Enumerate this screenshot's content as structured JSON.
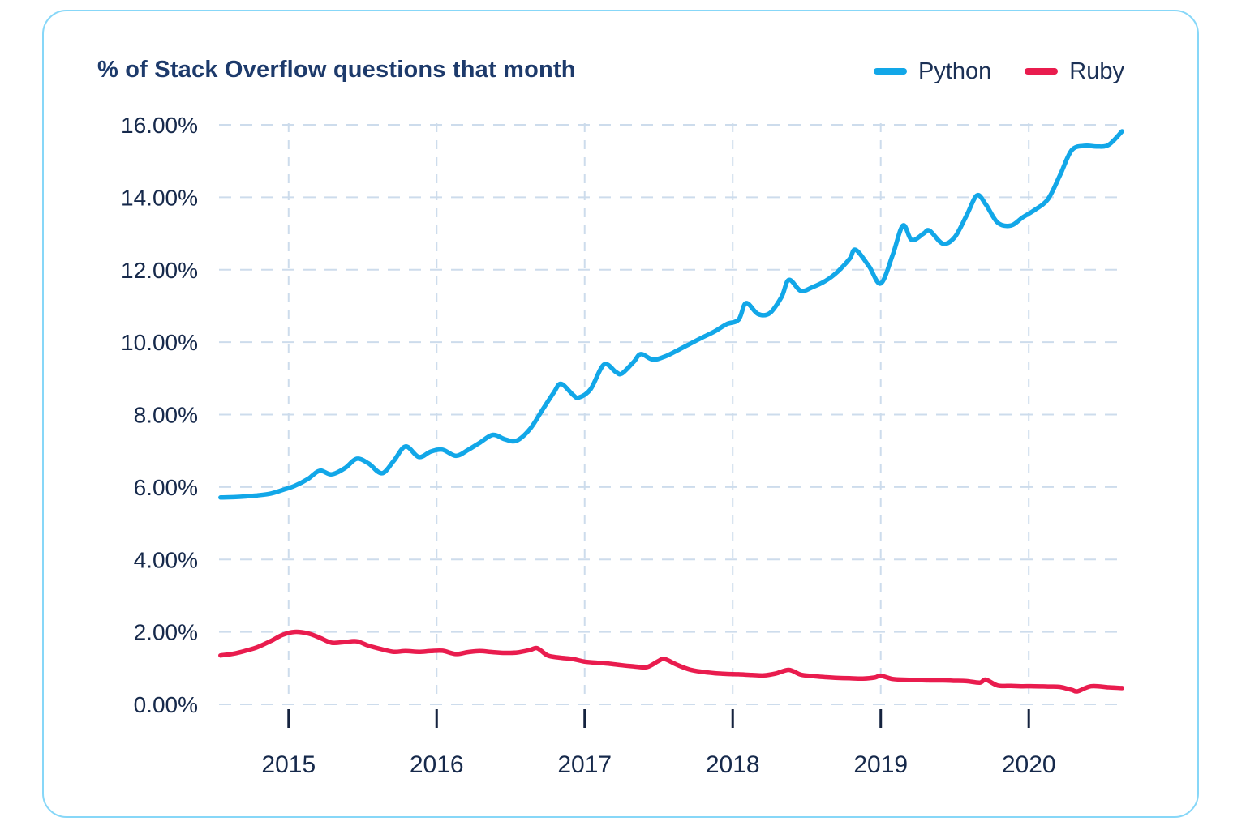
{
  "chart": {
    "title": "% of Stack Overflow questions that month"
  },
  "legend": [
    {
      "label": "Python",
      "color": "#12a7e8"
    },
    {
      "label": "Ruby",
      "color": "#e91c4e"
    }
  ],
  "colors": {
    "card_border": "#87d7f8",
    "title": "#1d3a6b",
    "legend_text": "#1b3055",
    "axis_label": "#16294b",
    "tick_mark": "#15233f",
    "grid": "#cddcec",
    "python_line": "#12a7e8",
    "ruby_line": "#e91c4e"
  },
  "chart_data": {
    "type": "line",
    "title": "% of Stack Overflow questions that month",
    "xlabel": "",
    "ylabel": "% of Stack Overflow questions that month",
    "grid": true,
    "legend_position": "top-right",
    "x_axis": {
      "range": [
        2014.53,
        2020.64
      ],
      "ticks": [
        2015,
        2016,
        2017,
        2018,
        2019,
        2020
      ],
      "labels": [
        "2015",
        "2016",
        "2017",
        "2018",
        "2019",
        "2020"
      ]
    },
    "y_axis": {
      "range": [
        0,
        16
      ],
      "ticks": [
        0,
        2,
        4,
        6,
        8,
        10,
        12,
        14,
        16
      ],
      "labels": [
        "0.00%",
        "2.00%",
        "4.00%",
        "6.00%",
        "8.00%",
        "10.00%",
        "12.00%",
        "14.00%",
        "16.00%"
      ]
    },
    "series": [
      {
        "name": "Python",
        "color": "#12a7e8",
        "points": [
          [
            2014.54,
            5.71
          ],
          [
            2014.63,
            5.72
          ],
          [
            2014.71,
            5.74
          ],
          [
            2014.79,
            5.77
          ],
          [
            2014.88,
            5.82
          ],
          [
            2014.96,
            5.92
          ],
          [
            2015.04,
            6.03
          ],
          [
            2015.13,
            6.22
          ],
          [
            2015.21,
            6.45
          ],
          [
            2015.29,
            6.35
          ],
          [
            2015.38,
            6.52
          ],
          [
            2015.46,
            6.78
          ],
          [
            2015.54,
            6.65
          ],
          [
            2015.63,
            6.38
          ],
          [
            2015.71,
            6.72
          ],
          [
            2015.79,
            7.12
          ],
          [
            2015.88,
            6.83
          ],
          [
            2015.96,
            6.98
          ],
          [
            2016.04,
            7.03
          ],
          [
            2016.13,
            6.86
          ],
          [
            2016.21,
            7.02
          ],
          [
            2016.29,
            7.22
          ],
          [
            2016.38,
            7.44
          ],
          [
            2016.46,
            7.32
          ],
          [
            2016.54,
            7.28
          ],
          [
            2016.63,
            7.6
          ],
          [
            2016.71,
            8.1
          ],
          [
            2016.79,
            8.6
          ],
          [
            2016.84,
            8.85
          ],
          [
            2016.92,
            8.55
          ],
          [
            2016.96,
            8.47
          ],
          [
            2017.04,
            8.7
          ],
          [
            2017.13,
            9.38
          ],
          [
            2017.21,
            9.18
          ],
          [
            2017.25,
            9.13
          ],
          [
            2017.33,
            9.45
          ],
          [
            2017.38,
            9.67
          ],
          [
            2017.46,
            9.52
          ],
          [
            2017.54,
            9.6
          ],
          [
            2017.63,
            9.78
          ],
          [
            2017.71,
            9.95
          ],
          [
            2017.79,
            10.12
          ],
          [
            2017.88,
            10.3
          ],
          [
            2017.96,
            10.5
          ],
          [
            2018.04,
            10.62
          ],
          [
            2018.09,
            11.08
          ],
          [
            2018.17,
            10.78
          ],
          [
            2018.25,
            10.8
          ],
          [
            2018.33,
            11.25
          ],
          [
            2018.38,
            11.72
          ],
          [
            2018.46,
            11.42
          ],
          [
            2018.54,
            11.52
          ],
          [
            2018.63,
            11.7
          ],
          [
            2018.71,
            11.95
          ],
          [
            2018.79,
            12.3
          ],
          [
            2018.83,
            12.55
          ],
          [
            2018.92,
            12.1
          ],
          [
            2019.0,
            11.62
          ],
          [
            2019.08,
            12.4
          ],
          [
            2019.15,
            13.22
          ],
          [
            2019.21,
            12.82
          ],
          [
            2019.29,
            13.0
          ],
          [
            2019.33,
            13.08
          ],
          [
            2019.42,
            12.72
          ],
          [
            2019.5,
            12.9
          ],
          [
            2019.58,
            13.5
          ],
          [
            2019.65,
            14.05
          ],
          [
            2019.71,
            13.8
          ],
          [
            2019.79,
            13.3
          ],
          [
            2019.88,
            13.22
          ],
          [
            2019.96,
            13.45
          ],
          [
            2020.04,
            13.65
          ],
          [
            2020.13,
            13.95
          ],
          [
            2020.21,
            14.6
          ],
          [
            2020.29,
            15.3
          ],
          [
            2020.38,
            15.42
          ],
          [
            2020.46,
            15.4
          ],
          [
            2020.54,
            15.45
          ],
          [
            2020.63,
            15.82
          ]
        ]
      },
      {
        "name": "Ruby",
        "color": "#e91c4e",
        "points": [
          [
            2014.54,
            1.35
          ],
          [
            2014.63,
            1.4
          ],
          [
            2014.71,
            1.48
          ],
          [
            2014.79,
            1.58
          ],
          [
            2014.88,
            1.75
          ],
          [
            2014.96,
            1.92
          ],
          [
            2015.04,
            2.0
          ],
          [
            2015.13,
            1.96
          ],
          [
            2015.21,
            1.84
          ],
          [
            2015.29,
            1.7
          ],
          [
            2015.38,
            1.72
          ],
          [
            2015.46,
            1.74
          ],
          [
            2015.54,
            1.62
          ],
          [
            2015.63,
            1.52
          ],
          [
            2015.71,
            1.45
          ],
          [
            2015.79,
            1.47
          ],
          [
            2015.88,
            1.45
          ],
          [
            2015.96,
            1.47
          ],
          [
            2016.04,
            1.48
          ],
          [
            2016.13,
            1.39
          ],
          [
            2016.21,
            1.44
          ],
          [
            2016.29,
            1.47
          ],
          [
            2016.38,
            1.44
          ],
          [
            2016.46,
            1.42
          ],
          [
            2016.54,
            1.43
          ],
          [
            2016.63,
            1.5
          ],
          [
            2016.68,
            1.55
          ],
          [
            2016.75,
            1.35
          ],
          [
            2016.83,
            1.29
          ],
          [
            2016.92,
            1.25
          ],
          [
            2017.0,
            1.18
          ],
          [
            2017.08,
            1.15
          ],
          [
            2017.17,
            1.12
          ],
          [
            2017.25,
            1.08
          ],
          [
            2017.33,
            1.05
          ],
          [
            2017.42,
            1.03
          ],
          [
            2017.5,
            1.2
          ],
          [
            2017.54,
            1.25
          ],
          [
            2017.63,
            1.08
          ],
          [
            2017.71,
            0.96
          ],
          [
            2017.79,
            0.9
          ],
          [
            2017.88,
            0.86
          ],
          [
            2017.96,
            0.84
          ],
          [
            2018.04,
            0.83
          ],
          [
            2018.13,
            0.81
          ],
          [
            2018.21,
            0.8
          ],
          [
            2018.29,
            0.85
          ],
          [
            2018.38,
            0.95
          ],
          [
            2018.46,
            0.82
          ],
          [
            2018.54,
            0.78
          ],
          [
            2018.63,
            0.75
          ],
          [
            2018.71,
            0.73
          ],
          [
            2018.79,
            0.72
          ],
          [
            2018.88,
            0.71
          ],
          [
            2018.96,
            0.74
          ],
          [
            2019.0,
            0.79
          ],
          [
            2019.08,
            0.7
          ],
          [
            2019.17,
            0.68
          ],
          [
            2019.25,
            0.67
          ],
          [
            2019.33,
            0.66
          ],
          [
            2019.42,
            0.66
          ],
          [
            2019.5,
            0.65
          ],
          [
            2019.58,
            0.64
          ],
          [
            2019.67,
            0.6
          ],
          [
            2019.71,
            0.68
          ],
          [
            2019.79,
            0.52
          ],
          [
            2019.88,
            0.51
          ],
          [
            2019.96,
            0.5
          ],
          [
            2020.04,
            0.5
          ],
          [
            2020.13,
            0.49
          ],
          [
            2020.21,
            0.48
          ],
          [
            2020.29,
            0.4
          ],
          [
            2020.33,
            0.36
          ],
          [
            2020.42,
            0.5
          ],
          [
            2020.54,
            0.47
          ],
          [
            2020.63,
            0.45
          ]
        ]
      }
    ]
  }
}
